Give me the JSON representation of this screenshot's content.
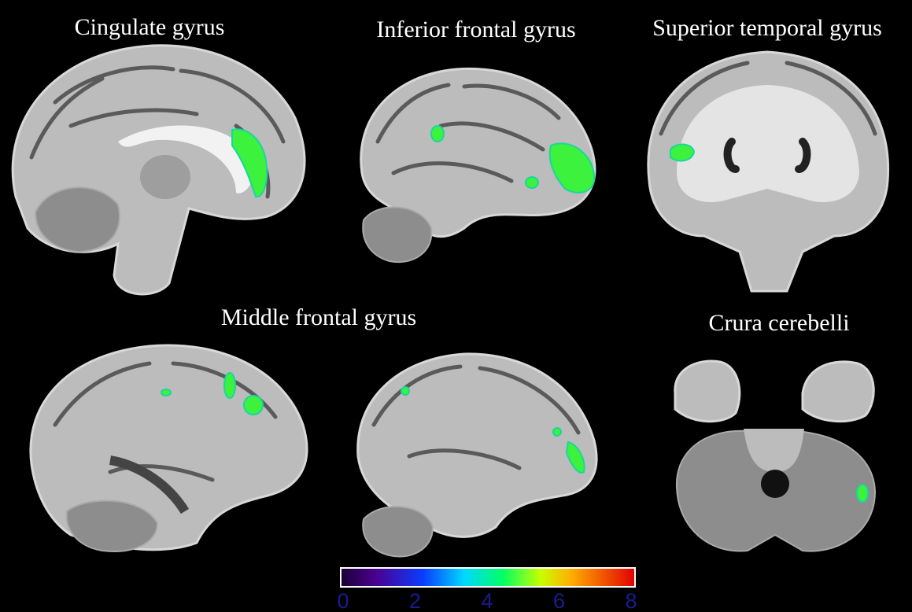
{
  "panels": [
    {
      "label": "Cingulate gyrus"
    },
    {
      "label": "Inferior frontal gyrus"
    },
    {
      "label": "Superior temporal gyrus"
    },
    {
      "label": "Middle frontal gyrus"
    },
    {
      "label": "Crura cerebelli"
    }
  ],
  "colorbar": {
    "range": [
      0,
      8
    ],
    "ticks": [
      0,
      2,
      4,
      6,
      8
    ]
  }
}
